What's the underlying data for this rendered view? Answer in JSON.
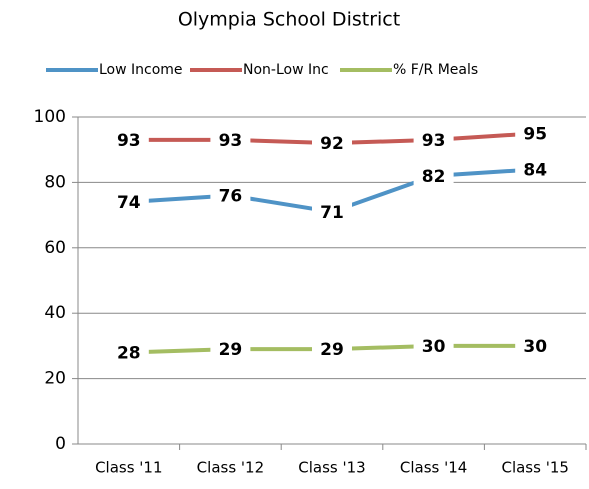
{
  "chart_data": {
    "type": "line",
    "title": "Olympia School District",
    "categories": [
      "Class '11",
      "Class '12",
      "Class '13",
      "Class '14",
      "Class '15"
    ],
    "series": [
      {
        "name": "Low Income",
        "color": "#4f93c6",
        "values": [
          74,
          76,
          71,
          82,
          84
        ]
      },
      {
        "name": "Non-Low Inc",
        "color": "#c55a55",
        "values": [
          93,
          93,
          92,
          93,
          95
        ]
      },
      {
        "name": "% F/R Meals",
        "color": "#a4bd62",
        "values": [
          28,
          29,
          29,
          30,
          30
        ]
      }
    ],
    "ylim": [
      0,
      100
    ],
    "yticks": [
      0,
      20,
      40,
      60,
      80,
      100
    ],
    "grid": true,
    "legend": "top"
  }
}
